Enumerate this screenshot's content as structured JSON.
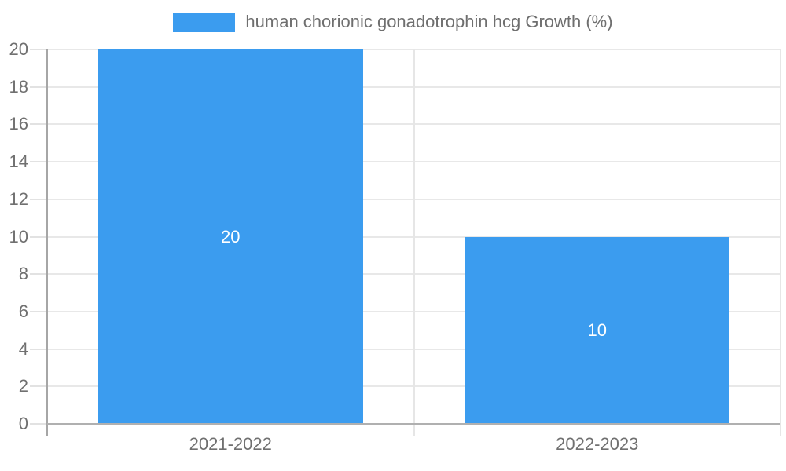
{
  "chart_data": {
    "type": "bar",
    "title": "",
    "xlabel": "",
    "ylabel": "",
    "categories": [
      "2021-2022",
      "2022-2023"
    ],
    "series": [
      {
        "name": "human chorionic gonadotrophin hcg Growth (%)",
        "values": [
          20,
          10
        ]
      }
    ],
    "data_labels": [
      "20",
      "10"
    ],
    "ylim": [
      0,
      20
    ],
    "yticks": [
      0,
      2,
      4,
      6,
      8,
      10,
      12,
      14,
      16,
      18,
      20
    ],
    "grid": true,
    "legend_position": "top",
    "bar_color": "#3B9CEF",
    "value_label_color": "#FFFFFF",
    "bar_slot_fill_ratio": 0.722
  }
}
